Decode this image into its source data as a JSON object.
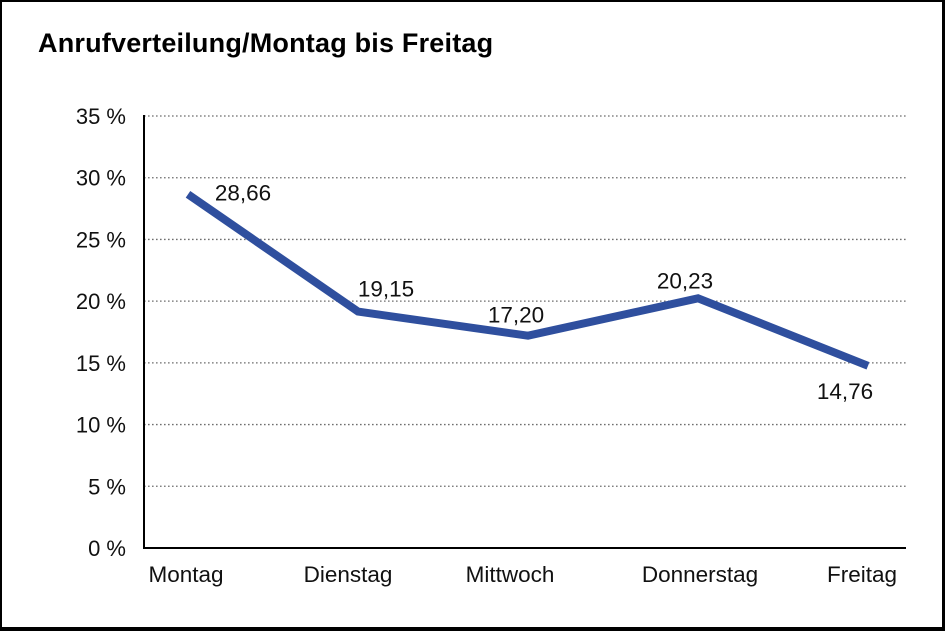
{
  "title": "Anrufverteilung/Montag bis Freitag",
  "chart_data": {
    "type": "line",
    "title": "Anrufverteilung/Montag bis Freitag",
    "categories": [
      "Montag",
      "Dienstag",
      "Mittwoch",
      "Donnerstag",
      "Freitag"
    ],
    "values": [
      28.66,
      19.15,
      17.2,
      20.23,
      14.76
    ],
    "value_labels": [
      "28,66",
      "19,15",
      "17,20",
      "20,23",
      "14,76"
    ],
    "y_ticks": [
      "0 %",
      "5 %",
      "10 %",
      "15 %",
      "20 %",
      "25 %",
      "30 %",
      "35 %"
    ],
    "ylim": [
      0,
      35
    ],
    "y_tick_step": 5,
    "xlabel": "",
    "ylabel": "",
    "legend": "none",
    "grid": "horizontal-dotted",
    "series_name": "Anrufverteilung"
  },
  "colors": {
    "line": "#2F4F9E",
    "axis": "#000000",
    "grid": "#6e6e6e",
    "text": "#111111",
    "background": "#ffffff",
    "frame_border": "#000000"
  }
}
